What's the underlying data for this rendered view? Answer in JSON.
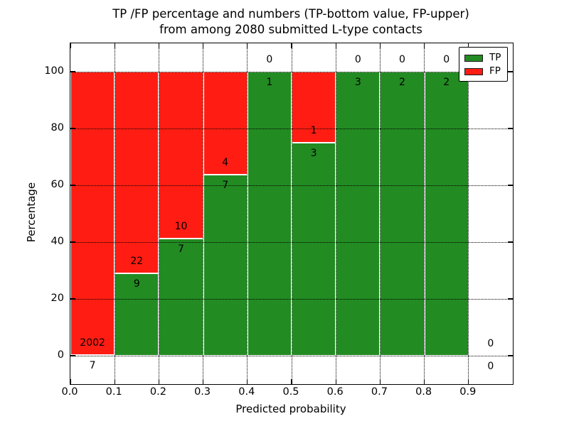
{
  "figure": {
    "title_line1": "TP /FP percentage and numbers (TP-bottom value, FP-upper)",
    "title_line2": "from among 2080 submitted L-type contacts",
    "xlabel": "Predicted probability",
    "ylabel": "Percentage"
  },
  "legend": {
    "position": "upper right",
    "items": [
      {
        "label": "TP",
        "color": "#228B22"
      },
      {
        "label": "FP",
        "color": "#FF1D13"
      }
    ]
  },
  "chart_data": {
    "type": "bar",
    "stacked": true,
    "normalized_to_percent": true,
    "title": "TP /FP percentage and numbers (TP-bottom value, FP-upper) from among 2080 submitted L-type contacts",
    "xlabel": "Predicted probability",
    "ylabel": "Percentage",
    "xlim": [
      0.0,
      1.0
    ],
    "ylim": [
      -10,
      110
    ],
    "grid": true,
    "legend_position": "upper right",
    "colors": {
      "tp": "#228B22",
      "fp": "#FF1D13",
      "bar_edge": "#ffffff"
    },
    "annotation_rule": "FP count printed above the TP/FP boundary, TP count printed below it",
    "xticks": [
      {
        "value": 0.0,
        "label": "0.0"
      },
      {
        "value": 0.1,
        "label": "0.1"
      },
      {
        "value": 0.2,
        "label": "0.2"
      },
      {
        "value": 0.3,
        "label": "0.3"
      },
      {
        "value": 0.4,
        "label": "0.4"
      },
      {
        "value": 0.5,
        "label": "0.5"
      },
      {
        "value": 0.6,
        "label": "0.6"
      },
      {
        "value": 0.7,
        "label": "0.7"
      },
      {
        "value": 0.8,
        "label": "0.8"
      },
      {
        "value": 0.9,
        "label": "0.9"
      }
    ],
    "yticks": [
      {
        "value": 0,
        "label": "0"
      },
      {
        "value": 20,
        "label": "20"
      },
      {
        "value": 40,
        "label": "40"
      },
      {
        "value": 60,
        "label": "60"
      },
      {
        "value": 80,
        "label": "80"
      },
      {
        "value": 100,
        "label": "100"
      }
    ],
    "grid_x_values": [
      0.1,
      0.2,
      0.3,
      0.4,
      0.5,
      0.6,
      0.7,
      0.8,
      0.9
    ],
    "bins": [
      {
        "range": [
          0.0,
          0.1
        ],
        "tp": 7,
        "fp": 2002,
        "tp_pct": 0.35,
        "fp_pct": 99.65
      },
      {
        "range": [
          0.1,
          0.2
        ],
        "tp": 9,
        "fp": 22,
        "tp_pct": 29.03,
        "fp_pct": 70.97
      },
      {
        "range": [
          0.2,
          0.3
        ],
        "tp": 7,
        "fp": 10,
        "tp_pct": 41.18,
        "fp_pct": 58.82
      },
      {
        "range": [
          0.3,
          0.4
        ],
        "tp": 7,
        "fp": 4,
        "tp_pct": 63.64,
        "fp_pct": 36.36
      },
      {
        "range": [
          0.4,
          0.5
        ],
        "tp": 1,
        "fp": 0,
        "tp_pct": 100.0,
        "fp_pct": 0.0
      },
      {
        "range": [
          0.5,
          0.6
        ],
        "tp": 3,
        "fp": 1,
        "tp_pct": 75.0,
        "fp_pct": 25.0
      },
      {
        "range": [
          0.6,
          0.7
        ],
        "tp": 3,
        "fp": 0,
        "tp_pct": 100.0,
        "fp_pct": 0.0
      },
      {
        "range": [
          0.7,
          0.8
        ],
        "tp": 2,
        "fp": 0,
        "tp_pct": 100.0,
        "fp_pct": 0.0
      },
      {
        "range": [
          0.8,
          0.9
        ],
        "tp": 2,
        "fp": 0,
        "tp_pct": 100.0,
        "fp_pct": 0.0
      },
      {
        "range": [
          0.9,
          1.0
        ],
        "tp": 0,
        "fp": 0,
        "tp_pct": 0.0,
        "fp_pct": 0.0
      }
    ]
  }
}
